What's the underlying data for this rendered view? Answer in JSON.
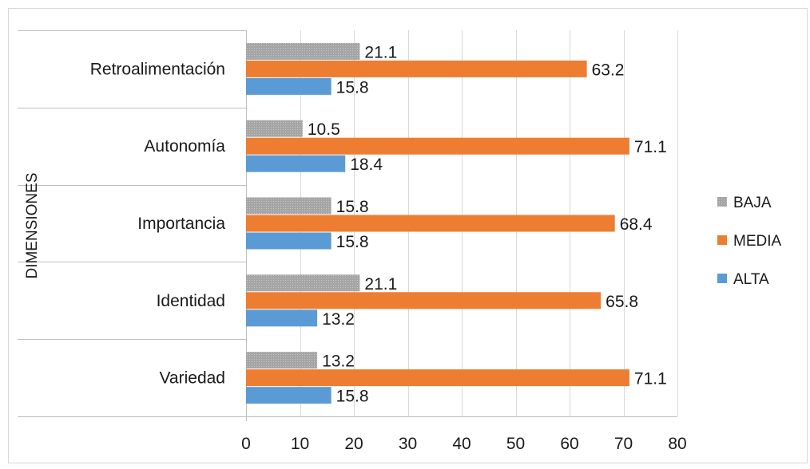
{
  "chart_data": {
    "type": "bar",
    "orientation": "horizontal",
    "ylabel": "DIMENSIONES",
    "categories": [
      "Variedad",
      "Identidad",
      "Importancia",
      "Autonomía",
      "Retroalimentación"
    ],
    "series": [
      {
        "name": "ALTA",
        "color": "#5b9bd5",
        "values": [
          15.8,
          13.2,
          15.8,
          18.4,
          15.8
        ]
      },
      {
        "name": "MEDIA",
        "color": "#ed7d31",
        "values": [
          71.1,
          65.8,
          68.4,
          71.1,
          63.2
        ]
      },
      {
        "name": "BAJA",
        "color": "#a5a5a5",
        "values": [
          13.2,
          21.1,
          15.8,
          10.5,
          21.1
        ]
      }
    ],
    "legend_order": [
      "BAJA",
      "MEDIA",
      "ALTA"
    ],
    "xlim": [
      0,
      80
    ],
    "xticks": [
      0,
      10,
      20,
      30,
      40,
      50,
      60,
      70,
      80
    ],
    "grid": true,
    "legend_position": "right"
  }
}
